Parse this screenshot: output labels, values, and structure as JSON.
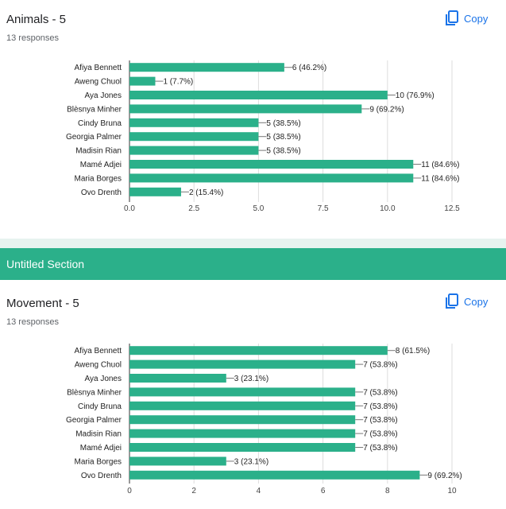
{
  "cards": [
    {
      "title": "Animals - 5",
      "responses": "13 responses",
      "copy_label": "Copy"
    },
    {
      "title": "Movement - 5",
      "responses": "13 responses",
      "copy_label": "Copy"
    }
  ],
  "section": {
    "title": "Untitled Section"
  },
  "colors": {
    "bar": "#2bb08a",
    "accent": "#1a73e8",
    "section": "#2bb08a"
  },
  "chart_data": [
    {
      "type": "bar",
      "orientation": "horizontal",
      "categories": [
        "Afiya Bennett",
        "Aweng Chuol",
        "Aya Jones",
        "Blèsnya Minher",
        "Cindy Bruna",
        "Georgia Palmer",
        "Madisin Rian",
        "Mamé Adjei",
        "Maria Borges",
        "Ovo Drenth"
      ],
      "values": [
        6,
        1,
        10,
        9,
        5,
        5,
        5,
        11,
        11,
        2
      ],
      "labels": [
        "6 (46.2%)",
        "1 (7.7%)",
        "10 (76.9%)",
        "9 (69.2%)",
        "5 (38.5%)",
        "5 (38.5%)",
        "5 (38.5%)",
        "11 (84.6%)",
        "11 (84.6%)",
        "2 (15.4%)"
      ],
      "xlim": [
        0,
        12.5
      ],
      "xticks": [
        "0.0",
        "2.5",
        "5.0",
        "7.5",
        "10.0",
        "12.5"
      ],
      "grid": true
    },
    {
      "type": "bar",
      "orientation": "horizontal",
      "categories": [
        "Afiya Bennett",
        "Aweng Chuol",
        "Aya Jones",
        "Blèsnya Minher",
        "Cindy Bruna",
        "Georgia Palmer",
        "Madisin Rian",
        "Mamé Adjei",
        "Maria Borges",
        "Ovo Drenth"
      ],
      "values": [
        8,
        7,
        3,
        7,
        7,
        7,
        7,
        7,
        3,
        9
      ],
      "labels": [
        "8 (61.5%)",
        "7 (53.8%)",
        "3 (23.1%)",
        "7 (53.8%)",
        "7 (53.8%)",
        "7 (53.8%)",
        "7 (53.8%)",
        "7 (53.8%)",
        "3 (23.1%)",
        "9 (69.2%)"
      ],
      "xlim": [
        0,
        10
      ],
      "xticks": [
        "0",
        "2",
        "4",
        "6",
        "8",
        "10"
      ],
      "grid": true
    }
  ]
}
